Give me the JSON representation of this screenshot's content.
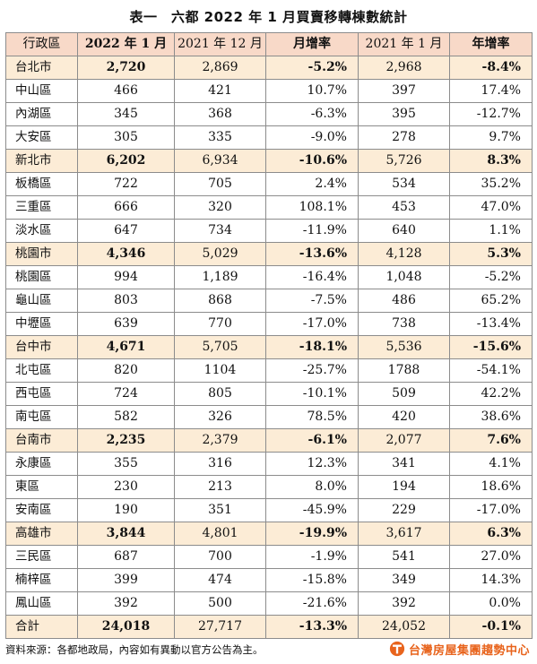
{
  "title": "表一　六都 2022 年 1 月買賣移轉棟數統計",
  "headers": [
    "行政區",
    "2022 年 1 月",
    "2021 年 12 月",
    "月增率",
    "2021 年 1 月",
    "年增率"
  ],
  "rows": [
    {
      "name": "台北市",
      "v2022_01": "2,720",
      "v2021_12": "2,869",
      "mom": "-5.2%",
      "v2021_01": "2,968",
      "yoy": "-8.4%",
      "type": "city"
    },
    {
      "name": "中山區",
      "v2022_01": "466",
      "v2021_12": "421",
      "mom": "10.7%",
      "v2021_01": "397",
      "yoy": "17.4%",
      "type": "district"
    },
    {
      "name": "內湖區",
      "v2022_01": "345",
      "v2021_12": "368",
      "mom": "-6.3%",
      "v2021_01": "395",
      "yoy": "-12.7%",
      "type": "district"
    },
    {
      "name": "大安區",
      "v2022_01": "305",
      "v2021_12": "335",
      "mom": "-9.0%",
      "v2021_01": "278",
      "yoy": "9.7%",
      "type": "district"
    },
    {
      "name": "新北市",
      "v2022_01": "6,202",
      "v2021_12": "6,934",
      "mom": "-10.6%",
      "v2021_01": "5,726",
      "yoy": "8.3%",
      "type": "city"
    },
    {
      "name": "板橋區",
      "v2022_01": "722",
      "v2021_12": "705",
      "mom": "2.4%",
      "v2021_01": "534",
      "yoy": "35.2%",
      "type": "district"
    },
    {
      "name": "三重區",
      "v2022_01": "666",
      "v2021_12": "320",
      "mom": "108.1%",
      "v2021_01": "453",
      "yoy": "47.0%",
      "type": "district"
    },
    {
      "name": "淡水區",
      "v2022_01": "647",
      "v2021_12": "734",
      "mom": "-11.9%",
      "v2021_01": "640",
      "yoy": "1.1%",
      "type": "district"
    },
    {
      "name": "桃園市",
      "v2022_01": "4,346",
      "v2021_12": "5,029",
      "mom": "-13.6%",
      "v2021_01": "4,128",
      "yoy": "5.3%",
      "type": "city"
    },
    {
      "name": "桃園區",
      "v2022_01": "994",
      "v2021_12": "1,189",
      "mom": "-16.4%",
      "v2021_01": "1,048",
      "yoy": "-5.2%",
      "type": "district"
    },
    {
      "name": "龜山區",
      "v2022_01": "803",
      "v2021_12": "868",
      "mom": "-7.5%",
      "v2021_01": "486",
      "yoy": "65.2%",
      "type": "district"
    },
    {
      "name": "中壢區",
      "v2022_01": "639",
      "v2021_12": "770",
      "mom": "-17.0%",
      "v2021_01": "738",
      "yoy": "-13.4%",
      "type": "district"
    },
    {
      "name": "台中市",
      "v2022_01": "4,671",
      "v2021_12": "5,705",
      "mom": "-18.1%",
      "v2021_01": "5,536",
      "yoy": "-15.6%",
      "type": "city"
    },
    {
      "name": "北屯區",
      "v2022_01": "820",
      "v2021_12": "1104",
      "mom": "-25.7%",
      "v2021_01": "1788",
      "yoy": "-54.1%",
      "type": "district"
    },
    {
      "name": "西屯區",
      "v2022_01": "724",
      "v2021_12": "805",
      "mom": "-10.1%",
      "v2021_01": "509",
      "yoy": "42.2%",
      "type": "district"
    },
    {
      "name": "南屯區",
      "v2022_01": "582",
      "v2021_12": "326",
      "mom": "78.5%",
      "v2021_01": "420",
      "yoy": "38.6%",
      "type": "district"
    },
    {
      "name": "台南市",
      "v2022_01": "2,235",
      "v2021_12": "2,379",
      "mom": "-6.1%",
      "v2021_01": "2,077",
      "yoy": "7.6%",
      "type": "city"
    },
    {
      "name": "永康區",
      "v2022_01": "355",
      "v2021_12": "316",
      "mom": "12.3%",
      "v2021_01": "341",
      "yoy": "4.1%",
      "type": "district"
    },
    {
      "name": "東區",
      "v2022_01": "230",
      "v2021_12": "213",
      "mom": "8.0%",
      "v2021_01": "194",
      "yoy": "18.6%",
      "type": "district"
    },
    {
      "name": "安南區",
      "v2022_01": "190",
      "v2021_12": "351",
      "mom": "-45.9%",
      "v2021_01": "229",
      "yoy": "-17.0%",
      "type": "district"
    },
    {
      "name": "高雄市",
      "v2022_01": "3,844",
      "v2021_12": "4,801",
      "mom": "-19.9%",
      "v2021_01": "3,617",
      "yoy": "6.3%",
      "type": "city"
    },
    {
      "name": "三民區",
      "v2022_01": "687",
      "v2021_12": "700",
      "mom": "-1.9%",
      "v2021_01": "541",
      "yoy": "27.0%",
      "type": "district"
    },
    {
      "name": "楠梓區",
      "v2022_01": "399",
      "v2021_12": "474",
      "mom": "-15.8%",
      "v2021_01": "349",
      "yoy": "14.3%",
      "type": "district"
    },
    {
      "name": "鳳山區",
      "v2022_01": "392",
      "v2021_12": "500",
      "mom": "-21.6%",
      "v2021_01": "392",
      "yoy": "0.0%",
      "type": "district"
    },
    {
      "name": "合計",
      "v2022_01": "24,018",
      "v2021_12": "27,717",
      "mom": "-13.3%",
      "v2021_01": "24,052",
      "yoy": "-0.1%",
      "type": "total"
    }
  ],
  "footer": "資料來源：各都地政局，內容如有異動以官方公告為主。",
  "logo": {
    "text": "台灣房屋集團趨勢中心",
    "icon": "taiwan-realty-logo-icon",
    "color": "#e8641d"
  },
  "colors": {
    "header_bg": "#f8d9c8",
    "city_row_bg": "#fcecd6",
    "border": "#8c8c8c"
  }
}
